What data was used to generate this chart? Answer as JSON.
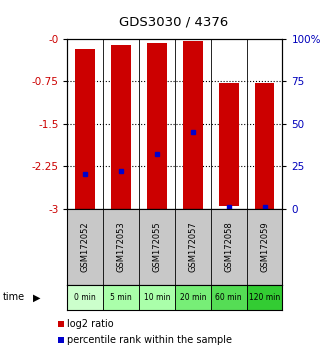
{
  "title": "GDS3030 / 4376",
  "samples": [
    "GSM172052",
    "GSM172053",
    "GSM172055",
    "GSM172057",
    "GSM172058",
    "GSM172059"
  ],
  "time_labels": [
    "0 min",
    "5 min",
    "10 min",
    "20 min",
    "60 min",
    "120 min"
  ],
  "time_colors": [
    "#ccffcc",
    "#aaffaa",
    "#aaffaa",
    "#77ee77",
    "#55dd55",
    "#33cc33"
  ],
  "log2_tops": [
    -0.18,
    -0.1,
    -0.07,
    -0.04,
    -0.78,
    -0.78
  ],
  "log2_bottoms": [
    -3.0,
    -3.0,
    -3.0,
    -3.0,
    -2.95,
    -3.0
  ],
  "percentile_values": [
    -2.38,
    -2.33,
    -2.03,
    -1.65,
    -2.97,
    -2.97
  ],
  "ylim_left": [
    -3.0,
    0.0
  ],
  "yticks_left": [
    0.0,
    -0.75,
    -1.5,
    -2.25,
    -3.0
  ],
  "ytick_labels_left": [
    "-0",
    "-0.75",
    "-1.5",
    "-2.25",
    "-3"
  ],
  "yticks_right": [
    0,
    25,
    50,
    75,
    100
  ],
  "ytick_labels_right": [
    "0",
    "25",
    "50",
    "75",
    "100%"
  ],
  "bar_color": "#cc0000",
  "percentile_color": "#0000cc",
  "background_color": "#ffffff",
  "label_color_left": "#cc0000",
  "label_color_right": "#0000bb",
  "gsm_bg": "#c8c8c8",
  "grid_yticks": [
    -0.75,
    -1.5,
    -2.25
  ]
}
